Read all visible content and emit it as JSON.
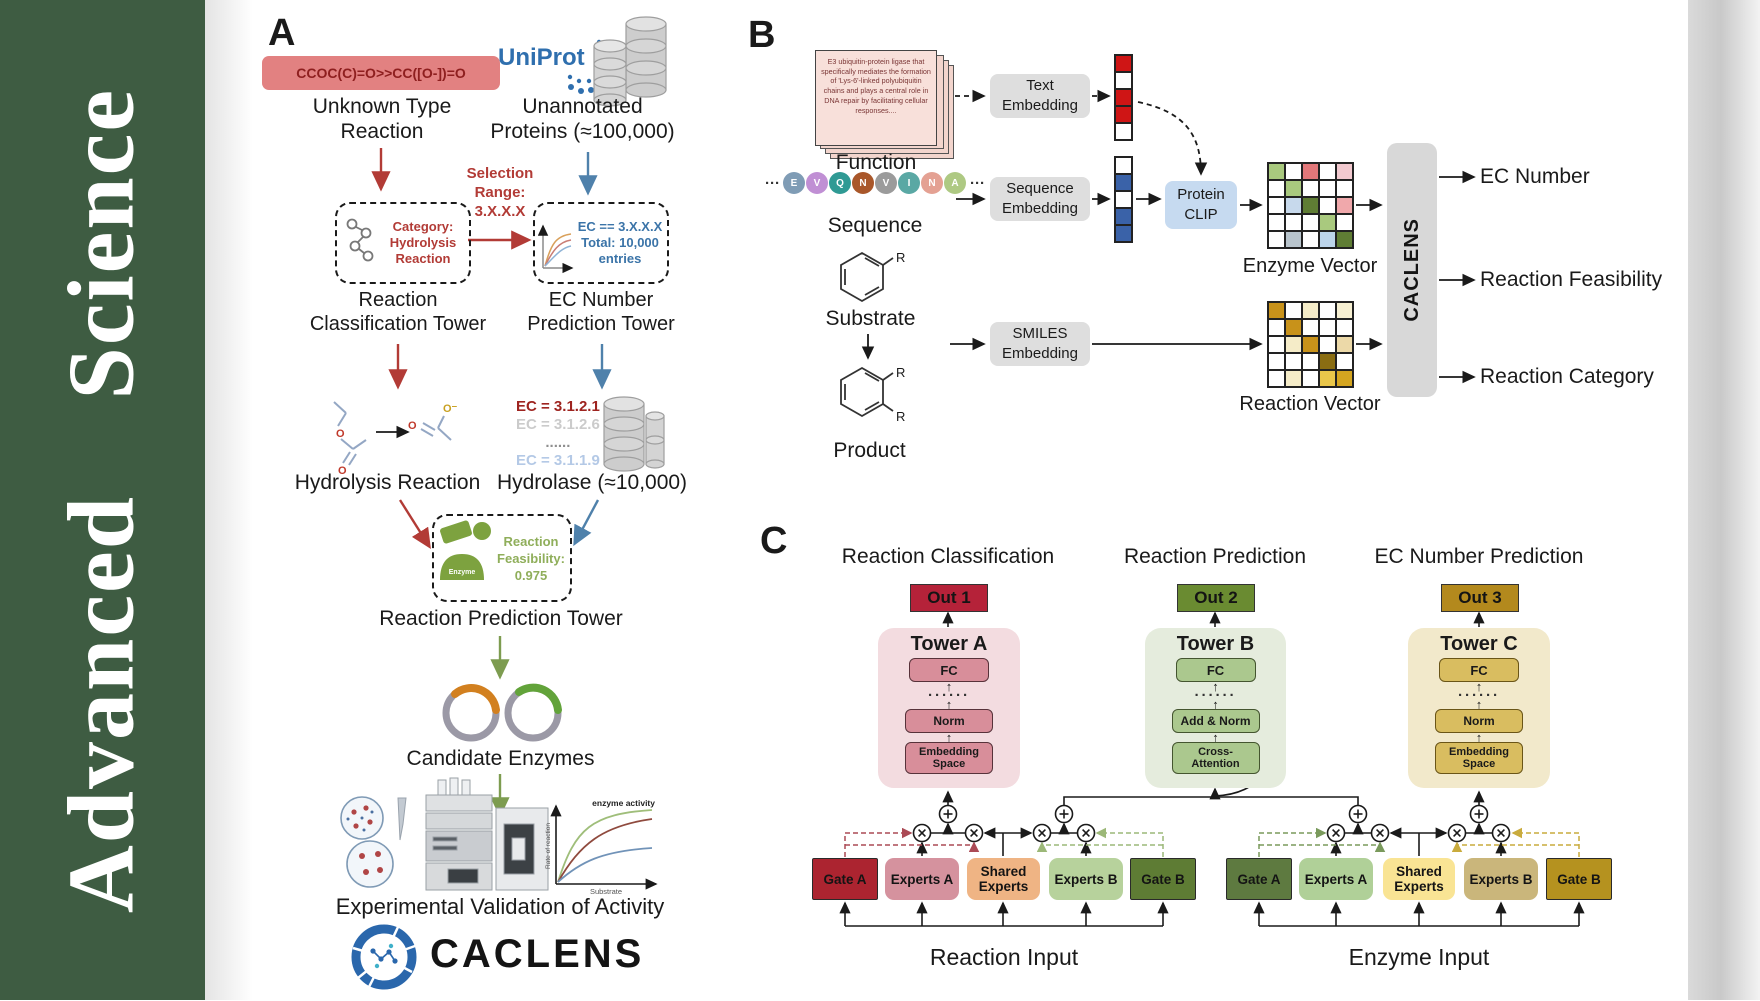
{
  "journal": {
    "sidebar_title": "Advanced Science"
  },
  "colors": {
    "sidebar_green": "#3e5c42",
    "uniprot_blue": "#2f6fae",
    "red_accent": "#b23b36",
    "blue_accent": "#4f81ab",
    "green_accent": "#7d9c50",
    "smiles_box_bg": "#e28181",
    "smiles_text": "#8e1f1f",
    "feasibility_green": "#8fae5a",
    "protein_clip_bg": "#c6daf0",
    "embed_box_bg": "#dedede",
    "caclens_box_bg": "#d8d8d8"
  },
  "panelA": {
    "label": "A",
    "smiles": "CCOC(C)=O>>CC([O-])=O",
    "unknown_reaction": "Unknown Type\nReaction",
    "uniprot": "UniProt",
    "unannotated": "Unannotated\nProteins (≈100,000)",
    "selection": "Selection\nRange:\n3.X.X.X",
    "category_box": "Category:\nHydrolysis\nReaction",
    "ec_range_box": "EC == 3.X.X.X\nTotal: 10,000\nentries",
    "tower1": "Reaction\nClassification Tower",
    "tower2": "EC Number\nPrediction Tower",
    "hydrolysis": "Hydrolysis Reaction",
    "ec_entries": [
      {
        "text": "EC = 3.1.2.1",
        "color": "#9e2420"
      },
      {
        "text": "EC = 3.1.2.6",
        "color": "#cbcbcb"
      },
      {
        "text": "......",
        "color": "#8f8f8f"
      },
      {
        "text": "EC = 3.1.1.9",
        "color": "#b4c9e6"
      }
    ],
    "hydrolase": "Hydrolase (≈10,000)",
    "enzyme_label": "Enzyme",
    "feasibility": "Reaction\nFeasibility:\n0.975",
    "tower3": "Reaction Prediction Tower",
    "candidates": "Candidate Enzymes",
    "validation": "Experimental Validation of Activity",
    "mini_plot": {
      "title": "enzyme activity",
      "ylabel": "Rate of reaction",
      "xlabel": "Substrate"
    },
    "logo_wordmark": "CACLENS"
  },
  "panelB": {
    "label": "B",
    "function_card": "E3 ubiquitin-protein ligase that specifically mediates the formation of 'Lys-6'-linked polyubiquitin chains and plays a central role in DNA repair by facilitating cellular responses....",
    "function_label": "Function",
    "sequence_label": "Sequence",
    "ellipsis": "···",
    "residues": [
      {
        "letter": "E",
        "color": "#7f9cb5"
      },
      {
        "letter": "V",
        "color": "#c08fd4"
      },
      {
        "letter": "Q",
        "color": "#2f9a94"
      },
      {
        "letter": "N",
        "color": "#a9572a"
      },
      {
        "letter": "V",
        "color": "#9b9b9b"
      },
      {
        "letter": "I",
        "color": "#5aa8a4"
      },
      {
        "letter": "N",
        "color": "#e4a193"
      },
      {
        "letter": "A",
        "color": "#aec983"
      }
    ],
    "text_embedding": "Text\nEmbedding",
    "sequence_embedding": "Sequence\nEmbedding",
    "smiles_embedding": "SMILES\nEmbedding",
    "protein_clip": "Protein\nCLIP",
    "substrate_label": "Substrate",
    "product_label": "Product",
    "r_label": "R",
    "text_vector_cells": [
      "#cf1515",
      "#ffffff",
      "#cf1515",
      "#cf1515",
      "#ffffff"
    ],
    "seq_vector_cells": [
      "#ffffff",
      "#3a62a8",
      "#ffffff",
      "#3a62a8",
      "#3a62a8"
    ],
    "enzyme_vector_cells": [
      [
        "#a9c97e",
        "#ffffff",
        "#e2787a",
        "#ffffff",
        "#f2c9cf"
      ],
      [
        "#ffffff",
        "#a9c97e",
        "#ffffff",
        "#ffffff",
        "#ffffff"
      ],
      [
        "#ffffff",
        "#c7d9ec",
        "#5f7d34",
        "#ffffff",
        "#f0a8ab"
      ],
      [
        "#ffffff",
        "#ffffff",
        "#ffffff",
        "#a9c97e",
        "#ffffff"
      ],
      [
        "#ffffff",
        "#b8c4cc",
        "#ffffff",
        "#bcd4ea",
        "#5f7d34"
      ]
    ],
    "reaction_vector_cells": [
      [
        "#c8921a",
        "#ffffff",
        "#f5ecc8",
        "#ffffff",
        "#f7f0d2"
      ],
      [
        "#ffffff",
        "#c8921a",
        "#ffffff",
        "#ffffff",
        "#ffffff"
      ],
      [
        "#ffffff",
        "#f5ecc8",
        "#c8921a",
        "#ffffff",
        "#ecd9a8"
      ],
      [
        "#ffffff",
        "#ffffff",
        "#ffffff",
        "#8a6d12",
        "#ffffff"
      ],
      [
        "#ffffff",
        "#f5ecc8",
        "#ffffff",
        "#e9c64a",
        "#d4a520"
      ]
    ],
    "enzyme_vector_label": "Enzyme Vector",
    "reaction_vector_label": "Reaction Vector",
    "caclens": "CACLENS",
    "outputs": [
      "EC Number",
      "Reaction Feasibility",
      "Reaction Category"
    ]
  },
  "panelC": {
    "label": "C",
    "columns": [
      {
        "title": "Reaction Classification",
        "out": "Out 1",
        "out_color": "#b52239",
        "tower": "Tower A",
        "fc": "FC",
        "dots": "······",
        "mid": "Norm",
        "bottom": "Embedding\nSpace"
      },
      {
        "title": "Reaction Prediction",
        "out": "Out 2",
        "out_color": "#6a8b31",
        "tower": "Tower B",
        "fc": "FC",
        "dots": "······",
        "mid": "Add & Norm",
        "bottom": "Cross-\nAttention"
      },
      {
        "title": "EC Number Prediction",
        "out": "Out 3",
        "out_color": "#b3891d",
        "tower": "Tower C",
        "fc": "FC",
        "dots": "······",
        "mid": "Norm",
        "bottom": "Embedding\nSpace"
      }
    ],
    "moe": [
      {
        "gate_a": "Gate A",
        "experts_a": "Experts A",
        "shared": "Shared\nExperts",
        "experts_b": "Experts B",
        "gate_b": "Gate B",
        "input": "Reaction Input",
        "colors": {
          "gate_a": "#ac2430",
          "experts_a": "#d5929e",
          "shared": "#efb484",
          "experts_b": "#b7d29c",
          "gate_b": "#5e7c34"
        }
      },
      {
        "gate_a": "Gate A",
        "experts_a": "Experts A",
        "shared": "Shared\nExperts",
        "experts_b": "Experts B",
        "gate_b": "Gate B",
        "input": "Enzyme Input",
        "colors": {
          "gate_a": "#5e7a40",
          "experts_a": "#b0d098",
          "shared": "#f9e494",
          "experts_b": "#cab67b",
          "gate_b": "#b5921f"
        }
      }
    ]
  }
}
